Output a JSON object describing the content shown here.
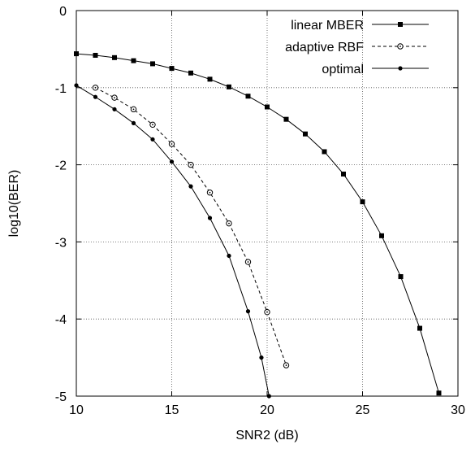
{
  "chart_data": {
    "type": "line",
    "xlabel": "SNR2 (dB)",
    "ylabel": "log10(BER)",
    "xlim": [
      10,
      30
    ],
    "ylim": [
      -5,
      0
    ],
    "xticks": [
      10,
      15,
      20,
      25,
      30
    ],
    "yticks": [
      0,
      -1,
      -2,
      -3,
      -4,
      -5
    ],
    "xtick_labels": [
      "10",
      "15",
      "20",
      "25",
      "30"
    ],
    "ytick_labels": [
      "0",
      "-1",
      "-2",
      "-3",
      "-4",
      "-5"
    ],
    "grid": true,
    "legend_position": "top-right",
    "series": [
      {
        "name": "linear MBER",
        "color": "#000000",
        "dash": "solid",
        "marker": "filled-square",
        "points": [
          [
            10,
            -0.56
          ],
          [
            11,
            -0.58
          ],
          [
            12,
            -0.61
          ],
          [
            13,
            -0.65
          ],
          [
            14,
            -0.69
          ],
          [
            15,
            -0.75
          ],
          [
            16,
            -0.81
          ],
          [
            17,
            -0.89
          ],
          [
            18,
            -0.99
          ],
          [
            19,
            -1.11
          ],
          [
            20,
            -1.25
          ],
          [
            21,
            -1.41
          ],
          [
            22,
            -1.6
          ],
          [
            23,
            -1.83
          ],
          [
            24,
            -2.12
          ],
          [
            25,
            -2.48
          ],
          [
            26,
            -2.92
          ],
          [
            27,
            -3.45
          ],
          [
            28,
            -4.12
          ],
          [
            29,
            -4.96
          ]
        ]
      },
      {
        "name": "adaptive RBF",
        "color": "#000000",
        "dash": "dashed",
        "marker": "open-circle-dot",
        "points": [
          [
            11,
            -1.0
          ],
          [
            12,
            -1.13
          ],
          [
            13,
            -1.28
          ],
          [
            14,
            -1.48
          ],
          [
            15,
            -1.73
          ],
          [
            16,
            -2.0
          ],
          [
            17,
            -2.36
          ],
          [
            18,
            -2.76
          ],
          [
            19,
            -3.26
          ],
          [
            20,
            -3.91
          ],
          [
            21,
            -4.6
          ]
        ]
      },
      {
        "name": "optimal",
        "color": "#000000",
        "dash": "solid",
        "marker": "filled-circle",
        "points": [
          [
            10,
            -0.97
          ],
          [
            11,
            -1.12
          ],
          [
            12,
            -1.28
          ],
          [
            13,
            -1.46
          ],
          [
            14,
            -1.67
          ],
          [
            15,
            -1.96
          ],
          [
            16,
            -2.28
          ],
          [
            17,
            -2.69
          ],
          [
            18,
            -3.18
          ],
          [
            19,
            -3.9
          ],
          [
            19.7,
            -4.5
          ],
          [
            20.1,
            -5.0
          ]
        ]
      }
    ]
  }
}
